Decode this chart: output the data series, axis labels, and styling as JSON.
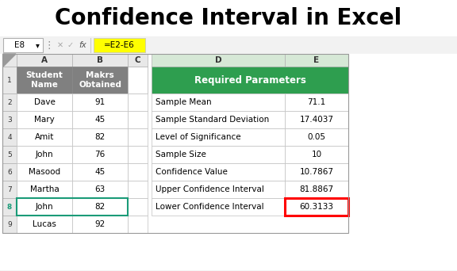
{
  "title": "Confidence Interval in Excel",
  "formula_bar_cell": "E8",
  "formula_bar_formula": "=E2-E6",
  "left_col_a": [
    "Student\nName",
    "Dave",
    "Mary",
    "Amit",
    "John",
    "Masood",
    "Martha",
    "John",
    "Lucas"
  ],
  "left_col_b": [
    "Makrs\nObtained",
    "91",
    "45",
    "82",
    "76",
    "45",
    "63",
    "82",
    "92"
  ],
  "right_header": "Required Parameters",
  "right_col_d": [
    "Sample Mean",
    "Sample Standard Deviation",
    "Level of Significance",
    "Sample Size",
    "Confidence Value",
    "Upper Confidence Interval",
    "Lower Confidence Interval"
  ],
  "right_col_e": [
    "71.1",
    "17.4037",
    "0.05",
    "10",
    "10.7867",
    "81.8867",
    "60.3133"
  ],
  "header_bg": "#808080",
  "header_fg": "#ffffff",
  "green_bg": "#2e9e4f",
  "green_fg": "#ffffff",
  "col_header_bg": "#e8e8e8",
  "formula_bar_bg": "#ffff00",
  "title_color": "#000000",
  "title_fontsize": 20,
  "body_fontsize": 7.5,
  "row8_teal": "#1a9b78",
  "red_border": "#ff0000",
  "grid_color": "#c0c0c0",
  "fig_bg": "#f2f2f2"
}
